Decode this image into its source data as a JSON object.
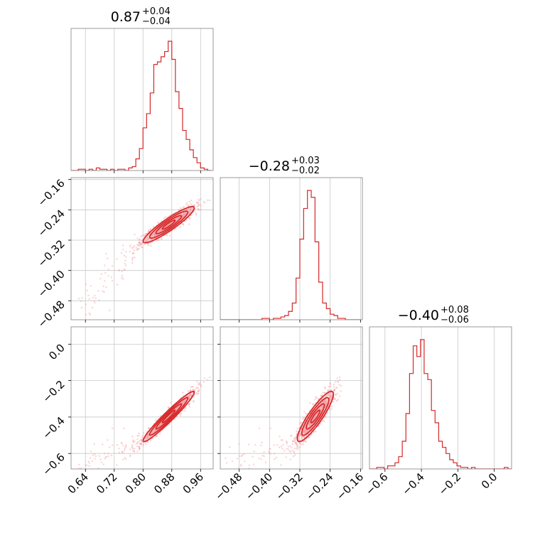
{
  "chart_data": {
    "type": "corner",
    "color": "#d62728",
    "grid": true,
    "parameters": [
      {
        "title": {
          "value": "0.87",
          "upper": "+0.04",
          "lower": "−0.04"
        },
        "range": [
          0.6,
          0.995
        ],
        "ticks": [
          0.64,
          0.72,
          0.8,
          0.88,
          0.96
        ],
        "tick_labels": [
          "0.64",
          "0.72",
          "0.80",
          "0.88",
          "0.96"
        ],
        "median": 0.87,
        "sigma": 0.035
      },
      {
        "title": {
          "value": "−0.28",
          "upper": "+0.03",
          "lower": "−0.02"
        },
        "range": [
          -0.53,
          -0.155
        ],
        "ticks": [
          -0.48,
          -0.4,
          -0.32,
          -0.24,
          -0.16
        ],
        "tick_labels": [
          "−0.48",
          "−0.40",
          "−0.32",
          "−0.24",
          "−0.16"
        ],
        "median": -0.28,
        "sigma": 0.022
      },
      {
        "title": {
          "value": "−0.40",
          "upper": "+0.08",
          "lower": "−0.06"
        },
        "range": [
          -0.685,
          0.095
        ],
        "ticks": [
          -0.6,
          -0.4,
          -0.2,
          0.0
        ],
        "tick_labels": [
          "−0.6",
          "−0.4",
          "−0.2",
          "0.0"
        ],
        "median": -0.4,
        "sigma": 0.065
      }
    ],
    "histograms": [
      {
        "param": 0,
        "bin_edges": [
          0.6,
          0.61,
          0.62,
          0.63,
          0.64,
          0.65,
          0.66,
          0.67,
          0.68,
          0.69,
          0.7,
          0.71,
          0.72,
          0.73,
          0.74,
          0.75,
          0.76,
          0.77,
          0.78,
          0.79,
          0.8,
          0.81,
          0.82,
          0.83,
          0.84,
          0.85,
          0.86,
          0.87,
          0.88,
          0.89,
          0.9,
          0.91,
          0.92,
          0.93,
          0.94,
          0.95,
          0.96,
          0.97,
          0.98,
          0.99
        ],
        "counts": [
          0,
          0,
          1,
          1,
          0,
          1,
          0,
          2,
          1,
          1,
          0,
          1,
          0,
          1,
          1,
          0,
          2,
          3,
          9,
          17,
          33,
          44,
          60,
          82,
          84,
          88,
          92,
          100,
          86,
          61,
          48,
          31,
          24,
          16,
          10,
          6,
          2,
          1,
          0
        ]
      },
      {
        "param": 1,
        "bin_edges": [
          -0.53,
          -0.52,
          -0.51,
          -0.5,
          -0.49,
          -0.48,
          -0.47,
          -0.46,
          -0.45,
          -0.44,
          -0.43,
          -0.42,
          -0.41,
          -0.4,
          -0.39,
          -0.38,
          -0.37,
          -0.36,
          -0.35,
          -0.34,
          -0.33,
          -0.32,
          -0.31,
          -0.3,
          -0.29,
          -0.28,
          -0.27,
          -0.26,
          -0.25,
          -0.24,
          -0.23,
          -0.22,
          -0.21,
          -0.2,
          -0.19,
          -0.18,
          -0.17,
          -0.16
        ],
        "counts": [
          0,
          0,
          0,
          0,
          0,
          0,
          0,
          0,
          0,
          0,
          0,
          1,
          1,
          0,
          1,
          1,
          2,
          3,
          6,
          12,
          30,
          58,
          80,
          93,
          88,
          56,
          27,
          12,
          8,
          4,
          3,
          1,
          1,
          0,
          0,
          0,
          0
        ]
      },
      {
        "param": 2,
        "bin_edges": [
          -0.685,
          -0.665,
          -0.645,
          -0.625,
          -0.605,
          -0.585,
          -0.565,
          -0.545,
          -0.525,
          -0.505,
          -0.485,
          -0.465,
          -0.445,
          -0.425,
          -0.405,
          -0.385,
          -0.365,
          -0.345,
          -0.325,
          -0.305,
          -0.285,
          -0.265,
          -0.245,
          -0.225,
          -0.205,
          -0.185,
          -0.165,
          -0.145,
          -0.125,
          -0.105,
          -0.085,
          -0.065,
          -0.045,
          -0.025,
          -0.005,
          0.015,
          0.035,
          0.055,
          0.075,
          0.095
        ],
        "counts": [
          0,
          0,
          1,
          1,
          0,
          2,
          2,
          4,
          8,
          18,
          36,
          62,
          80,
          73,
          84,
          62,
          58,
          38,
          30,
          18,
          14,
          10,
          6,
          4,
          2,
          1,
          1,
          0,
          1,
          0,
          0,
          0,
          0,
          0,
          0,
          0,
          0,
          1,
          0
        ]
      }
    ]
  }
}
